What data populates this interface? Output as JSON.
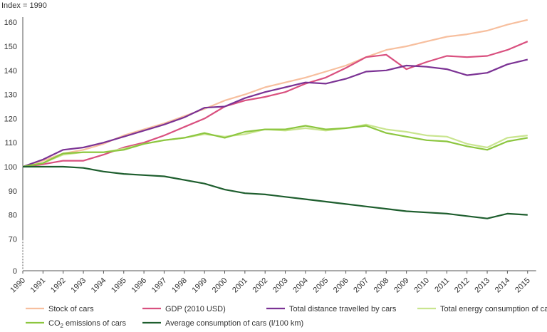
{
  "chart_data": {
    "type": "line",
    "ylabel": "Index = 1990",
    "ylim": [
      0,
      160
    ],
    "yticks": [
      0,
      70,
      80,
      90,
      100,
      110,
      120,
      130,
      140,
      150,
      160
    ],
    "y_axis_break": true,
    "grid": false,
    "legend_position": "bottom",
    "x": [
      "1990",
      "1991",
      "1992",
      "1993",
      "1994",
      "1995",
      "1996",
      "1997",
      "1998",
      "1999",
      "2000",
      "2001",
      "2002",
      "2003",
      "2004",
      "2005",
      "2006",
      "2007",
      "2008",
      "2009",
      "2010",
      "2011",
      "2012",
      "2013",
      "2014",
      "2015"
    ],
    "series": [
      {
        "name": "Stock of cars",
        "color": "#f7bf9e",
        "values": [
          100,
          102.5,
          105.5,
          107,
          109.5,
          113,
          115.5,
          118,
          121,
          124,
          127.5,
          130,
          133,
          135,
          137,
          139.5,
          142,
          145.5,
          148.5,
          150,
          152,
          154,
          155,
          156.5,
          159,
          161
        ]
      },
      {
        "name": "GDP (2010 USD)",
        "color": "#d9507f",
        "values": [
          100,
          101,
          102.5,
          102.5,
          105,
          108,
          110,
          113,
          116.5,
          120,
          125,
          127.5,
          129,
          131,
          134.5,
          137,
          141,
          145.5,
          146.5,
          140.5,
          143.5,
          146,
          145.5,
          146,
          148.5,
          152
        ]
      },
      {
        "name": "Total distance travelled by cars",
        "color": "#7b3294",
        "values": [
          100,
          103,
          107,
          108,
          110,
          112.5,
          115,
          117.5,
          120.5,
          124.5,
          125,
          128.5,
          131,
          133,
          135,
          134.5,
          136.5,
          139.5,
          140,
          142,
          141.5,
          140.5,
          138,
          139,
          142.5,
          144.5
        ]
      },
      {
        "name": "Total energy consumption of cars",
        "color": "#c9e58f",
        "values": [
          100,
          101.5,
          105,
          106,
          106,
          107.5,
          109.5,
          111,
          112,
          113.5,
          112.5,
          113.5,
          115.5,
          115,
          116,
          115,
          116,
          117.5,
          115.5,
          114.5,
          113,
          112.5,
          109.5,
          108,
          112,
          113
        ]
      },
      {
        "name": "CO2 emissions of cars",
        "color": "#8cc63f",
        "values": [
          100,
          101.5,
          105.5,
          106,
          106,
          107,
          109.5,
          111,
          112,
          114,
          112,
          114.5,
          115.5,
          115.5,
          117,
          115.5,
          116,
          117,
          114,
          112.5,
          111,
          110.5,
          108.5,
          107,
          110.5,
          112
        ]
      },
      {
        "name": "Average consumption of cars (l/100 km)",
        "color": "#1e5e2e",
        "values": [
          100,
          100,
          100,
          99.5,
          98,
          97,
          96.5,
          96,
          94.5,
          93,
          90.5,
          89,
          88.5,
          87.5,
          86.5,
          85.5,
          84.5,
          83.5,
          82.5,
          81.5,
          81,
          80.5,
          79.5,
          78.5,
          80.5,
          80
        ]
      }
    ],
    "legend": [
      {
        "text": "Stock of cars",
        "color": "#f7bf9e"
      },
      {
        "text": "GDP (2010 USD)",
        "color": "#d9507f"
      },
      {
        "text": "Total distance travelled by cars",
        "color": "#7b3294"
      },
      {
        "text": "Total energy consumption of cars",
        "color": "#c9e58f"
      },
      {
        "text": "CO",
        "sub": "2",
        "rest": " emissions of cars",
        "color": "#8cc63f"
      },
      {
        "text": "Average consumption of cars (l/100 km)",
        "color": "#1e5e2e"
      }
    ]
  }
}
